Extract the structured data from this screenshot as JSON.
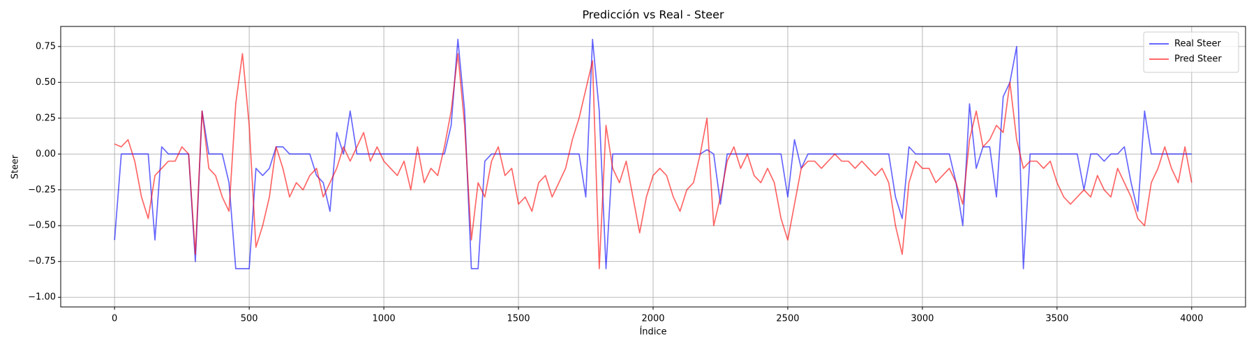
{
  "chart_data": {
    "type": "line",
    "title": "Predicción vs Real - Steer",
    "xlabel": "Índice",
    "ylabel": "Steer",
    "x": [
      0,
      25,
      50,
      75,
      100,
      125,
      150,
      175,
      200,
      225,
      250,
      275,
      300,
      325,
      350,
      375,
      400,
      425,
      450,
      475,
      500,
      525,
      550,
      575,
      600,
      625,
      650,
      675,
      700,
      725,
      750,
      775,
      800,
      825,
      850,
      875,
      900,
      925,
      950,
      975,
      1000,
      1025,
      1050,
      1075,
      1100,
      1125,
      1150,
      1175,
      1200,
      1225,
      1250,
      1275,
      1300,
      1325,
      1350,
      1375,
      1400,
      1425,
      1450,
      1475,
      1500,
      1525,
      1550,
      1575,
      1600,
      1625,
      1650,
      1675,
      1700,
      1725,
      1750,
      1775,
      1800,
      1825,
      1850,
      1875,
      1900,
      1925,
      1950,
      1975,
      2000,
      2025,
      2050,
      2075,
      2100,
      2125,
      2150,
      2175,
      2200,
      2225,
      2250,
      2275,
      2300,
      2325,
      2350,
      2375,
      2400,
      2425,
      2450,
      2475,
      2500,
      2525,
      2550,
      2575,
      2600,
      2625,
      2650,
      2675,
      2700,
      2725,
      2750,
      2775,
      2800,
      2825,
      2850,
      2875,
      2900,
      2925,
      2950,
      2975,
      3000,
      3025,
      3050,
      3075,
      3100,
      3125,
      3150,
      3175,
      3200,
      3225,
      3250,
      3275,
      3300,
      3325,
      3350,
      3375,
      3400,
      3425,
      3450,
      3475,
      3500,
      3525,
      3550,
      3575,
      3600,
      3625,
      3650,
      3675,
      3700,
      3725,
      3750,
      3775,
      3800,
      3825,
      3850,
      3875,
      3900,
      3925,
      3950,
      3975,
      4000
    ],
    "series": [
      {
        "name": "Real Steer",
        "color": "#0000ff",
        "values": [
          -0.6,
          0,
          0,
          0,
          0,
          0,
          -0.6,
          0.05,
          0,
          0,
          0,
          0,
          -0.75,
          0.3,
          0,
          0,
          0,
          -0.2,
          -0.8,
          -0.8,
          -0.8,
          -0.1,
          -0.15,
          -0.1,
          0.05,
          0.05,
          0,
          0,
          0,
          0,
          -0.15,
          -0.2,
          -0.4,
          0.15,
          0,
          0.3,
          0,
          0,
          0,
          0,
          0,
          0,
          0,
          0,
          0,
          0,
          0,
          0,
          0,
          0,
          0.2,
          0.8,
          0.3,
          -0.8,
          -0.8,
          -0.05,
          0,
          0,
          0,
          0,
          0,
          0,
          0,
          0,
          0,
          0,
          0,
          0,
          0,
          0,
          -0.3,
          0.8,
          0.3,
          -0.8,
          0,
          0,
          0,
          0,
          0,
          0,
          0,
          0,
          0,
          0,
          0,
          0,
          0,
          0,
          0.03,
          0,
          -0.35,
          0,
          0,
          0,
          0,
          0,
          0,
          0,
          0,
          0,
          -0.3,
          0.1,
          -0.1,
          0,
          0,
          0,
          0,
          0,
          0,
          0,
          0,
          0,
          0,
          0,
          0,
          0,
          -0.3,
          -0.45,
          0.05,
          0,
          0,
          0,
          0,
          0,
          0,
          -0.2,
          -0.5,
          0.35,
          -0.1,
          0.05,
          0.05,
          -0.3,
          0.4,
          0.5,
          0.75,
          -0.8,
          0,
          0,
          0,
          0,
          0,
          0,
          0,
          0,
          -0.25,
          0,
          0,
          -0.05,
          0,
          0,
          0.05,
          -0.2,
          -0.4,
          0.3,
          0,
          0,
          0,
          0,
          0,
          0,
          0
        ]
      },
      {
        "name": "Pred Steer",
        "color": "#ff0000",
        "values": [
          0.07,
          0.05,
          0.1,
          -0.05,
          -0.3,
          -0.45,
          -0.15,
          -0.1,
          -0.05,
          -0.05,
          0.05,
          0,
          -0.7,
          0.3,
          -0.1,
          -0.15,
          -0.3,
          -0.4,
          0.35,
          0.7,
          0.2,
          -0.65,
          -0.5,
          -0.3,
          0.05,
          -0.1,
          -0.3,
          -0.2,
          -0.25,
          -0.15,
          -0.1,
          -0.3,
          -0.2,
          -0.1,
          0.05,
          -0.05,
          0.05,
          0.15,
          -0.05,
          0.05,
          -0.05,
          -0.1,
          -0.15,
          -0.05,
          -0.25,
          0.05,
          -0.2,
          -0.1,
          -0.15,
          0.05,
          0.3,
          0.7,
          0.2,
          -0.6,
          -0.2,
          -0.3,
          -0.05,
          0.05,
          -0.15,
          -0.1,
          -0.35,
          -0.3,
          -0.4,
          -0.2,
          -0.15,
          -0.3,
          -0.2,
          -0.1,
          0.1,
          0.25,
          0.45,
          0.65,
          -0.8,
          0.2,
          -0.1,
          -0.2,
          -0.05,
          -0.3,
          -0.55,
          -0.3,
          -0.15,
          -0.1,
          -0.15,
          -0.3,
          -0.4,
          -0.25,
          -0.2,
          0,
          0.25,
          -0.5,
          -0.3,
          -0.05,
          0.05,
          -0.1,
          0,
          -0.15,
          -0.2,
          -0.1,
          -0.2,
          -0.45,
          -0.6,
          -0.35,
          -0.1,
          -0.05,
          -0.05,
          -0.1,
          -0.05,
          0,
          -0.05,
          -0.05,
          -0.1,
          -0.05,
          -0.1,
          -0.15,
          -0.1,
          -0.2,
          -0.5,
          -0.7,
          -0.2,
          -0.05,
          -0.1,
          -0.1,
          -0.2,
          -0.15,
          -0.1,
          -0.2,
          -0.35,
          0.1,
          0.3,
          0.05,
          0.1,
          0.2,
          0.15,
          0.5,
          0.1,
          -0.1,
          -0.05,
          -0.05,
          -0.1,
          -0.05,
          -0.2,
          -0.3,
          -0.35,
          -0.3,
          -0.25,
          -0.3,
          -0.15,
          -0.25,
          -0.3,
          -0.1,
          -0.2,
          -0.3,
          -0.45,
          -0.5,
          -0.2,
          -0.1,
          0.05,
          -0.1,
          -0.2,
          0.05,
          -0.2
        ]
      }
    ],
    "xlim": [
      -200,
      4200
    ],
    "xticks": [
      0,
      500,
      1000,
      1500,
      2000,
      2500,
      3000,
      3500,
      4000
    ],
    "ylim": [
      -1.067,
      0.89
    ],
    "yticks": [
      {
        "value": -1,
        "label": "−1.00"
      },
      {
        "value": -0.75,
        "label": "−0.75"
      },
      {
        "value": -0.5,
        "label": "−0.50"
      },
      {
        "value": -0.25,
        "label": "−0.25"
      },
      {
        "value": 0,
        "label": "0.00"
      },
      {
        "value": 0.25,
        "label": "0.25"
      },
      {
        "value": 0.5,
        "label": "0.50"
      },
      {
        "value": 0.75,
        "label": "0.75"
      }
    ],
    "grid": true,
    "legend": "upper right"
  }
}
